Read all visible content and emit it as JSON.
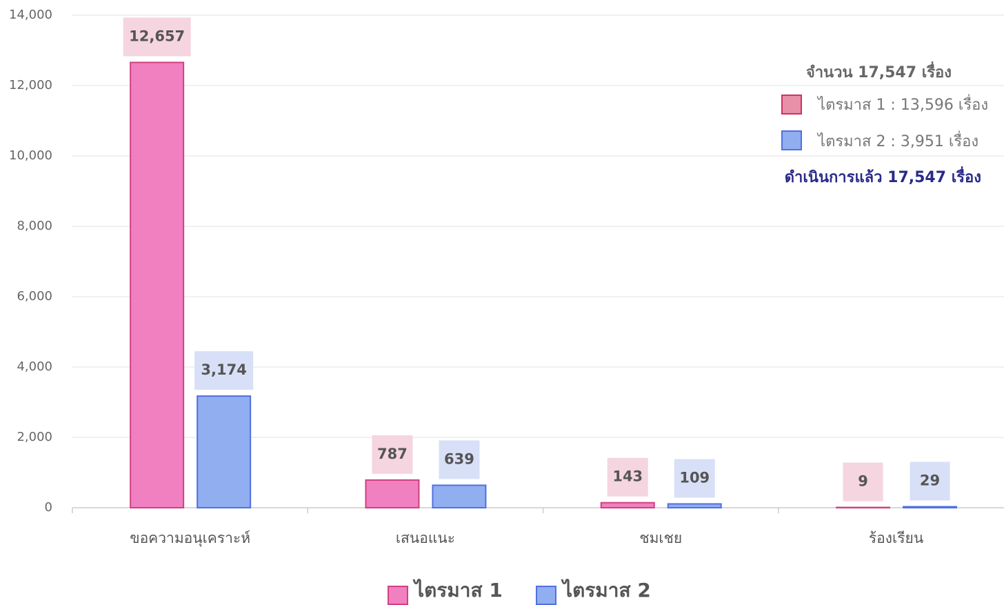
{
  "chart_data": {
    "type": "bar",
    "categories": [
      "ขอความอนุเคราะห์",
      "เสนอแนะ",
      "ชมเชย",
      "ร้องเรียน"
    ],
    "series": [
      {
        "name": "ไตรมาส 1",
        "color": "#f080c0",
        "values": [
          12657,
          787,
          143,
          9
        ],
        "value_labels": [
          "12,657",
          "787",
          "143",
          "9"
        ]
      },
      {
        "name": "ไตรมาส 2",
        "color": "#90aef0",
        "values": [
          3174,
          639,
          109,
          29
        ],
        "value_labels": [
          "3,174",
          "639",
          "109",
          "29"
        ]
      }
    ],
    "ylim": [
      0,
      14000
    ],
    "yticks": [
      0,
      {
        "value": 2000,
        "label": "2,000"
      },
      {
        "value": 4000,
        "label": "4,000"
      },
      {
        "value": 6000,
        "label": "6,000"
      },
      {
        "value": 8000,
        "label": "8,000"
      },
      {
        "value": 10000,
        "label": "10,000"
      },
      {
        "value": 12000,
        "label": "12,000"
      },
      {
        "value": 14000,
        "label": "14,000"
      }
    ],
    "grid": true,
    "legend": "bottom",
    "annotations": [
      "จำนวน  17,547 เรื่อง",
      "ไตรมาส 1 : 13,596 เรื่อง",
      "ไตรมาส 2 :  3,951 เรื่อง",
      "ดำเนินการแล้ว 17,547 เรื่อง"
    ]
  }
}
